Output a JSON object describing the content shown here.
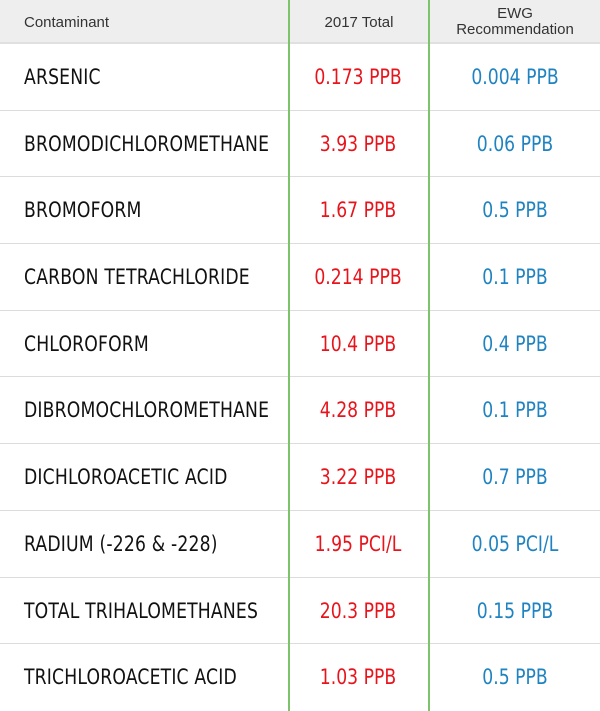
{
  "header": {
    "contaminant": "Contaminant",
    "total": "2017 Total",
    "ewg": "EWG\nRecommendation"
  },
  "colors": {
    "total_value": "#e8141b",
    "ewg_value": "#1f83c1",
    "divider": "#7dc36b",
    "header_bg": "#eeeeee"
  },
  "rows": [
    {
      "name": "ARSENIC",
      "total": "0.173 PPB",
      "ewg": "0.004 PPB"
    },
    {
      "name": "BROMODICHLOROMETHANE",
      "total": "3.93 PPB",
      "ewg": "0.06 PPB"
    },
    {
      "name": "BROMOFORM",
      "total": "1.67 PPB",
      "ewg": "0.5 PPB"
    },
    {
      "name": "CARBON TETRACHLORIDE",
      "total": "0.214 PPB",
      "ewg": "0.1 PPB"
    },
    {
      "name": "CHLOROFORM",
      "total": "10.4 PPB",
      "ewg": "0.4 PPB"
    },
    {
      "name": "DIBROMOCHLOROMETHANE",
      "total": "4.28 PPB",
      "ewg": "0.1 PPB"
    },
    {
      "name": "DICHLOROACETIC ACID",
      "total": "3.22 PPB",
      "ewg": "0.7 PPB"
    },
    {
      "name": "RADIUM (-226 & -228)",
      "total": "1.95 PCI/L",
      "ewg": "0.05 PCI/L"
    },
    {
      "name": "TOTAL TRIHALOMETHANES",
      "total": "20.3 PPB",
      "ewg": "0.15 PPB"
    },
    {
      "name": "TRICHLOROACETIC ACID",
      "total": "1.03 PPB",
      "ewg": "0.5 PPB"
    }
  ]
}
